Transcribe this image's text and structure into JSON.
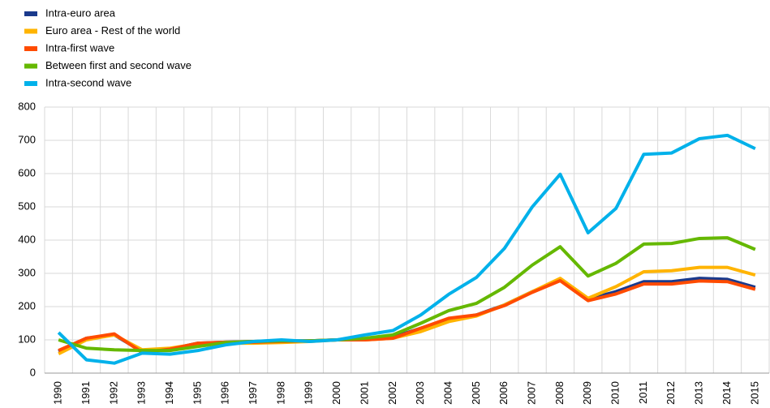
{
  "chart_data": {
    "type": "line",
    "categories": [
      "1990",
      "1991",
      "1992",
      "1993",
      "1994",
      "1995",
      "1996",
      "1997",
      "1998",
      "1999",
      "2000",
      "2001",
      "2002",
      "2003",
      "2004",
      "2005",
      "2006",
      "2007",
      "2008",
      "2009",
      "2010",
      "2011",
      "2012",
      "2013",
      "2014",
      "2015"
    ],
    "series": [
      {
        "name": "Intra-euro area",
        "color": "#1a3a8c",
        "values": [
          65,
          105,
          115,
          65,
          72,
          90,
          93,
          95,
          97,
          97,
          100,
          103,
          108,
          135,
          160,
          175,
          205,
          245,
          280,
          222,
          245,
          275,
          275,
          285,
          282,
          258
        ]
      },
      {
        "name": "Euro area - Rest of the world",
        "color": "#ffb400",
        "values": [
          58,
          100,
          115,
          70,
          75,
          88,
          90,
          90,
          92,
          95,
          100,
          100,
          105,
          125,
          155,
          172,
          205,
          245,
          285,
          225,
          260,
          305,
          308,
          318,
          318,
          295
        ]
      },
      {
        "name": "Intra-first wave",
        "color": "#ff4b00",
        "values": [
          68,
          105,
          118,
          62,
          72,
          90,
          93,
          93,
          95,
          97,
          100,
          100,
          105,
          135,
          165,
          175,
          203,
          243,
          278,
          218,
          238,
          268,
          268,
          277,
          275,
          252
        ]
      },
      {
        "name": "Between first and second wave",
        "color": "#65b800",
        "values": [
          100,
          75,
          70,
          68,
          68,
          80,
          92,
          95,
          97,
          97,
          100,
          105,
          115,
          150,
          188,
          210,
          258,
          325,
          380,
          292,
          330,
          388,
          390,
          405,
          407,
          372
        ]
      },
      {
        "name": "Intra-second wave",
        "color": "#00b1ea",
        "values": [
          122,
          40,
          30,
          60,
          57,
          68,
          85,
          95,
          100,
          95,
          100,
          115,
          128,
          175,
          237,
          288,
          375,
          500,
          598,
          422,
          495,
          658,
          662,
          705,
          715,
          675
        ]
      }
    ],
    "ylim": [
      0,
      800
    ],
    "yticks": [
      0,
      100,
      200,
      300,
      400,
      500,
      600,
      700,
      800
    ],
    "grid": true,
    "legend": "top-left"
  }
}
